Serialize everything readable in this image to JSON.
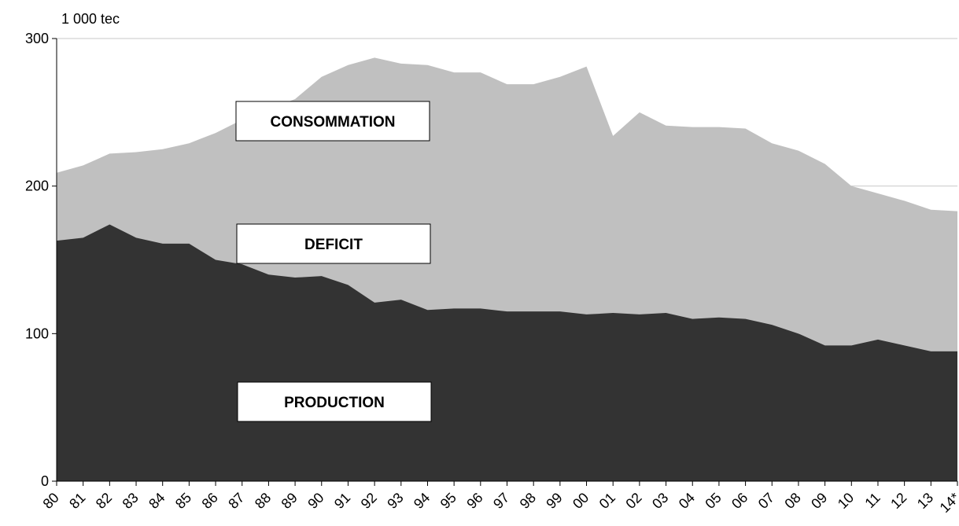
{
  "chart_data": {
    "type": "area",
    "unit_label": "1 000 tec",
    "categories": [
      "80",
      "81",
      "82",
      "83",
      "84",
      "85",
      "86",
      "87",
      "88",
      "89",
      "90",
      "91",
      "92",
      "93",
      "94",
      "95",
      "96",
      "97",
      "98",
      "99",
      "00",
      "01",
      "02",
      "03",
      "04",
      "05",
      "06",
      "07",
      "08",
      "09",
      "10",
      "11",
      "12",
      "13",
      "14*"
    ],
    "series": [
      {
        "name": "CONSOMMATION",
        "color": "#c0c0c0",
        "values": [
          209,
          214,
          222,
          223,
          225,
          229,
          236,
          245,
          252,
          259,
          274,
          282,
          287,
          283,
          282,
          277,
          277,
          269,
          269,
          274,
          281,
          234,
          250,
          241,
          240,
          240,
          239,
          229,
          224,
          215,
          200,
          195,
          190,
          184,
          183
        ]
      },
      {
        "name": "PRODUCTION",
        "color": "#333333",
        "values": [
          163,
          165,
          174,
          165,
          161,
          161,
          150,
          147,
          140,
          138,
          139,
          133,
          121,
          123,
          116,
          117,
          117,
          115,
          115,
          115,
          113,
          114,
          113,
          114,
          110,
          111,
          110,
          106,
          100,
          92,
          92,
          96,
          92,
          88,
          88
        ]
      }
    ],
    "annotations": [
      "DEFICIT"
    ],
    "ylim": [
      0,
      300
    ],
    "yticks": [
      0,
      100,
      200,
      300
    ],
    "grid": true
  }
}
